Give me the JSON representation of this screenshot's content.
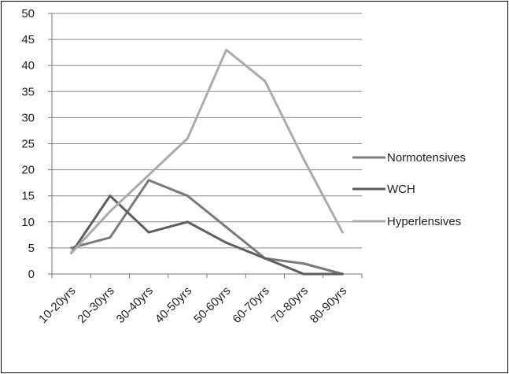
{
  "chart_data": {
    "type": "line",
    "categories": [
      "10-20yrs",
      "20-30yrs",
      "30-40yrs",
      "40-50yrs",
      "50-60yrs",
      "60-70yrs",
      "70-80yrs",
      "80-90yrs"
    ],
    "series": [
      {
        "name": "Normotensives",
        "color": "#7a7a7a",
        "values": [
          5,
          7,
          18,
          15,
          9,
          3,
          2,
          0
        ]
      },
      {
        "name": "WCH",
        "color": "#5e5e5e",
        "values": [
          4,
          15,
          8,
          10,
          6,
          3,
          0,
          0
        ]
      },
      {
        "name": "Hyperlensives",
        "color": "#ababab",
        "values": [
          4,
          12,
          19,
          26,
          43,
          37,
          22,
          8
        ]
      }
    ],
    "ylim": [
      0,
      50
    ],
    "yticks": [
      "0",
      "5",
      "10",
      "15",
      "20",
      "25",
      "30",
      "35",
      "40",
      "45",
      "50"
    ],
    "grid": true,
    "legend_position": "right"
  }
}
